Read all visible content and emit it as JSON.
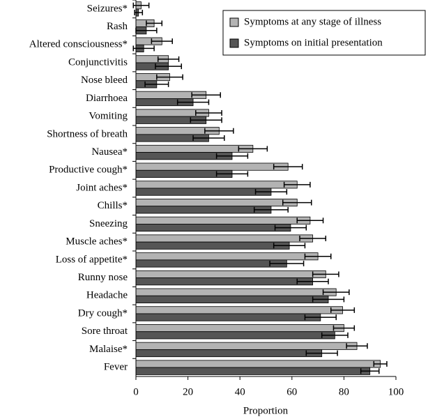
{
  "chart_data": {
    "type": "bar",
    "orientation": "horizontal",
    "x_label": "Proportion",
    "categories": [
      "Seizures*",
      "Rash",
      "Altered consciousness*",
      "Conjunctivitis",
      "Nose bleed",
      "Diarrhoea",
      "Vomiting",
      "Shortness of breath",
      "Nausea*",
      "Productive cough*",
      "Joint aches*",
      "Chills*",
      "Sneezing",
      "Muscle aches*",
      "Loss of appetite*",
      "Runny nose",
      "Headache",
      "Dry cough*",
      "Sore throat",
      "Malaise*",
      "Fever"
    ],
    "series": [
      {
        "name": "Symptoms at any stage of illness",
        "color": "#b3b3b3",
        "values": [
          2,
          7,
          10,
          12.5,
          13,
          27,
          28,
          32,
          45,
          58.5,
          62,
          62,
          67,
          68,
          70,
          73,
          77,
          79.5,
          80,
          85,
          94
        ],
        "errors": [
          3,
          3,
          4,
          4,
          5,
          5.5,
          5,
          5.5,
          5.5,
          5.5,
          5,
          5.5,
          5,
          5,
          5,
          5,
          5,
          4.5,
          4,
          4,
          2.5
        ]
      },
      {
        "name": "Symptoms on initial presentation",
        "color": "#555555",
        "values": [
          1,
          4,
          3,
          12.5,
          8,
          22,
          27,
          28,
          37,
          37,
          52,
          52,
          59.5,
          59,
          58,
          68,
          74,
          71,
          76.5,
          71.5,
          90
        ],
        "errors": [
          1.5,
          4,
          4,
          5,
          4.5,
          6,
          6,
          6,
          6,
          6,
          6,
          6.5,
          6,
          6,
          6.5,
          6,
          6,
          6,
          5,
          6,
          3.5
        ]
      }
    ],
    "xlim": [
      0,
      100
    ],
    "xticks": [
      0,
      20,
      40,
      60,
      80,
      100
    ],
    "legend": "top-right"
  }
}
